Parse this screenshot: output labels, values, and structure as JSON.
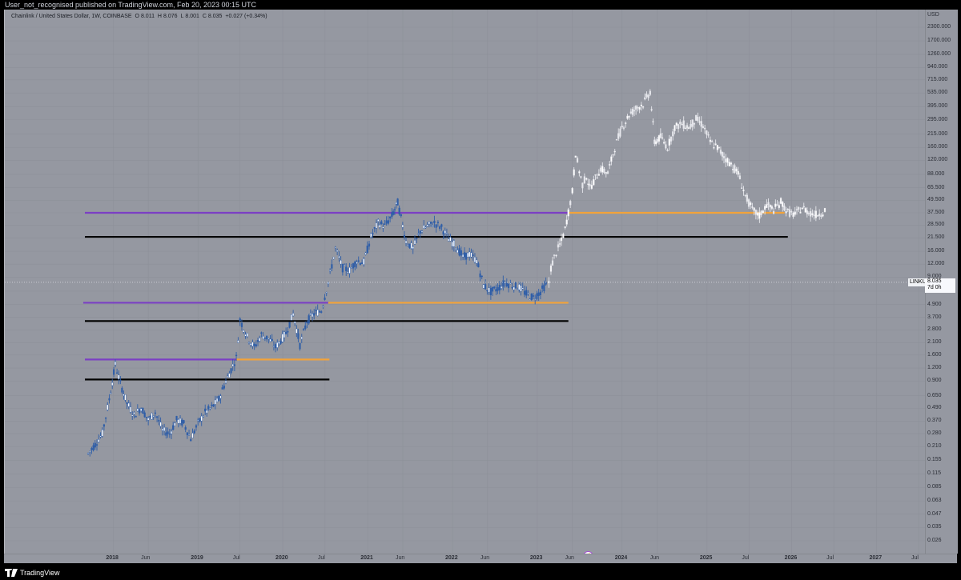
{
  "header": {
    "publish_text": "User_not_recognised published on TradingView.com, Feb 20, 2023 00:15 UTC"
  },
  "legend": {
    "symbol": "Chainlink / United States Dollar, 1W, COINBASE",
    "o_label": "O",
    "o_value": "8.011",
    "h_label": "H",
    "h_value": "8.076",
    "l_label": "L",
    "l_value": "8.001",
    "c_label": "C",
    "c_value": "8.035",
    "change": "+0.027 (+0.34%)"
  },
  "price_axis": {
    "currency": "USD",
    "labels": [
      "2300.000",
      "1700.000",
      "1260.000",
      "940.000",
      "715.000",
      "535.000",
      "395.000",
      "295.000",
      "215.000",
      "160.000",
      "120.000",
      "88.000",
      "65.500",
      "49.500",
      "37.500",
      "28.500",
      "21.500",
      "16.000",
      "12.000",
      "9.000",
      "6.600",
      "4.900",
      "3.700",
      "2.800",
      "2.100",
      "1.600",
      "1.200",
      "0.900",
      "0.650",
      "0.490",
      "0.370",
      "0.280",
      "0.210",
      "0.155",
      "0.115",
      "0.085",
      "0.063",
      "0.047",
      "0.035",
      "0.026"
    ]
  },
  "time_axis": {
    "labels": [
      {
        "text": "2018",
        "year": true
      },
      {
        "text": "Jun",
        "year": false
      },
      {
        "text": "2019",
        "year": true
      },
      {
        "text": "Jul",
        "year": false
      },
      {
        "text": "2020",
        "year": true
      },
      {
        "text": "Jul",
        "year": false
      },
      {
        "text": "2021",
        "year": true
      },
      {
        "text": "Jun",
        "year": false
      },
      {
        "text": "2022",
        "year": true
      },
      {
        "text": "Jun",
        "year": false
      },
      {
        "text": "2023",
        "year": true
      },
      {
        "text": "Jun",
        "year": false
      },
      {
        "text": "2024",
        "year": true
      },
      {
        "text": "Jun",
        "year": false
      },
      {
        "text": "2025",
        "year": true
      },
      {
        "text": "Jul",
        "year": false
      },
      {
        "text": "2026",
        "year": true
      },
      {
        "text": "Jul",
        "year": false
      },
      {
        "text": "2027",
        "year": true
      },
      {
        "text": "Jul",
        "year": false
      }
    ]
  },
  "last_price": {
    "symbol": "LINKUSD",
    "value": "8.035",
    "countdown": "7d 0h"
  },
  "footer": {
    "brand": "TradingView"
  },
  "colors": {
    "background": "#9598a1",
    "candle_real": "#2f5ea8",
    "candle_projection": "#e6e7ec",
    "resistance_line": "#7b3fc4",
    "support_line": "#f2a33a",
    "level_line": "#000000"
  },
  "chart_data": {
    "type": "candlestick",
    "title": "",
    "xlabel": "",
    "ylabel": "",
    "y_scale": "log",
    "ylim": [
      0.026,
      2300
    ],
    "xlim": [
      "2017-09-01",
      "2027-08-01"
    ],
    "grid": true,
    "series": [
      {
        "name": "",
        "kind": "price_history",
        "points": [
          [
            "2017-09-15",
            0.18
          ],
          [
            "2017-10-15",
            0.22
          ],
          [
            "2017-11-15",
            0.28
          ],
          [
            "2017-12-15",
            0.6
          ],
          [
            "2018-01-10",
            1.3
          ],
          [
            "2018-02-01",
            0.85
          ],
          [
            "2018-03-01",
            0.55
          ],
          [
            "2018-04-01",
            0.42
          ],
          [
            "2018-05-01",
            0.5
          ],
          [
            "2018-06-01",
            0.38
          ],
          [
            "2018-07-01",
            0.45
          ],
          [
            "2018-08-01",
            0.3
          ],
          [
            "2018-09-01",
            0.28
          ],
          [
            "2018-10-01",
            0.38
          ],
          [
            "2018-11-01",
            0.35
          ],
          [
            "2018-12-01",
            0.25
          ],
          [
            "2019-01-01",
            0.35
          ],
          [
            "2019-02-01",
            0.45
          ],
          [
            "2019-03-01",
            0.5
          ],
          [
            "2019-04-01",
            0.6
          ],
          [
            "2019-05-01",
            0.9
          ],
          [
            "2019-06-15",
            1.5
          ],
          [
            "2019-07-01",
            3.5
          ],
          [
            "2019-08-01",
            2.4
          ],
          [
            "2019-09-01",
            1.9
          ],
          [
            "2019-10-01",
            2.5
          ],
          [
            "2019-11-01",
            2.3
          ],
          [
            "2019-12-01",
            1.9
          ],
          [
            "2020-01-15",
            2.6
          ],
          [
            "2020-02-15",
            4.0
          ],
          [
            "2020-03-15",
            2.0
          ],
          [
            "2020-04-15",
            3.4
          ],
          [
            "2020-05-15",
            4.0
          ],
          [
            "2020-06-15",
            4.3
          ],
          [
            "2020-07-15",
            8.0
          ],
          [
            "2020-08-15",
            17.0
          ],
          [
            "2020-09-15",
            11.0
          ],
          [
            "2020-10-15",
            10.5
          ],
          [
            "2020-11-15",
            13.0
          ],
          [
            "2020-12-15",
            12.5
          ],
          [
            "2021-01-15",
            22.0
          ],
          [
            "2021-02-15",
            30.0
          ],
          [
            "2021-03-15",
            28.0
          ],
          [
            "2021-04-15",
            35.0
          ],
          [
            "2021-05-10",
            47.0
          ],
          [
            "2021-06-15",
            20.0
          ],
          [
            "2021-07-15",
            17.0
          ],
          [
            "2021-08-15",
            25.0
          ],
          [
            "2021-09-15",
            28.0
          ],
          [
            "2021-10-15",
            30.0
          ],
          [
            "2021-11-15",
            27.0
          ],
          [
            "2021-12-15",
            21.0
          ],
          [
            "2022-01-15",
            18.0
          ],
          [
            "2022-02-15",
            14.0
          ],
          [
            "2022-03-15",
            15.0
          ],
          [
            "2022-04-15",
            13.0
          ],
          [
            "2022-05-15",
            7.5
          ],
          [
            "2022-06-15",
            6.5
          ],
          [
            "2022-07-15",
            7.0
          ],
          [
            "2022-08-15",
            8.0
          ],
          [
            "2022-09-15",
            7.5
          ],
          [
            "2022-10-15",
            7.2
          ],
          [
            "2022-11-15",
            6.2
          ],
          [
            "2022-12-15",
            5.7
          ],
          [
            "2023-01-15",
            6.5
          ],
          [
            "2023-02-15",
            8.035
          ]
        ]
      },
      {
        "name": "",
        "kind": "projection",
        "points": [
          [
            "2023-02-20",
            8.0
          ],
          [
            "2023-03-01",
            11.0
          ],
          [
            "2023-03-15",
            14.0
          ],
          [
            "2023-04-01",
            17.0
          ],
          [
            "2023-04-15",
            20.0
          ],
          [
            "2023-05-01",
            26.0
          ],
          [
            "2023-05-15",
            38.0
          ],
          [
            "2023-06-01",
            60.0
          ],
          [
            "2023-06-15",
            140.0
          ],
          [
            "2023-07-01",
            95.0
          ],
          [
            "2023-07-15",
            70.0
          ],
          [
            "2023-08-01",
            85.0
          ],
          [
            "2023-08-15",
            65.0
          ],
          [
            "2023-09-01",
            75.0
          ],
          [
            "2023-10-01",
            100.0
          ],
          [
            "2023-11-01",
            90.0
          ],
          [
            "2023-12-01",
            160.0
          ],
          [
            "2024-01-01",
            250.0
          ],
          [
            "2024-02-01",
            330.0
          ],
          [
            "2024-03-01",
            380.0
          ],
          [
            "2024-04-01",
            420.0
          ],
          [
            "2024-05-01",
            550.0
          ],
          [
            "2024-05-20",
            180.0
          ],
          [
            "2024-06-15",
            200.0
          ],
          [
            "2024-07-15",
            160.0
          ],
          [
            "2024-08-15",
            250.0
          ],
          [
            "2024-09-15",
            270.0
          ],
          [
            "2024-10-15",
            250.0
          ],
          [
            "2024-11-15",
            300.0
          ],
          [
            "2024-12-15",
            260.0
          ],
          [
            "2025-01-15",
            180.0
          ],
          [
            "2025-02-15",
            160.0
          ],
          [
            "2025-03-15",
            130.0
          ],
          [
            "2025-04-15",
            110.0
          ],
          [
            "2025-05-15",
            90.0
          ],
          [
            "2025-06-15",
            55.0
          ],
          [
            "2025-07-15",
            40.0
          ],
          [
            "2025-08-15",
            35.0
          ],
          [
            "2025-09-15",
            45.0
          ],
          [
            "2025-10-15",
            40.0
          ],
          [
            "2025-11-15",
            48.0
          ],
          [
            "2025-12-15",
            38.0
          ],
          [
            "2026-01-15",
            36.0
          ],
          [
            "2026-02-15",
            42.0
          ],
          [
            "2026-03-15",
            38.0
          ],
          [
            "2026-04-15",
            36.0
          ],
          [
            "2026-05-15",
            38.0
          ],
          [
            "2026-06-01",
            42.0
          ]
        ]
      }
    ],
    "levels": [
      {
        "kind": "resistance",
        "price": 37.5,
        "from": "2017-09-01",
        "to": "2023-05-15"
      },
      {
        "kind": "support",
        "price": 37.5,
        "from": "2023-05-15",
        "to": "2025-12-01"
      },
      {
        "kind": "level",
        "price": 22.0,
        "from": "2017-09-01",
        "to": "2025-12-15"
      },
      {
        "kind": "resistance",
        "price": 5.1,
        "from": "2017-08-25",
        "to": "2020-07-15"
      },
      {
        "kind": "support",
        "price": 5.1,
        "from": "2020-07-15",
        "to": "2023-05-15"
      },
      {
        "kind": "level",
        "price": 3.4,
        "from": "2017-09-01",
        "to": "2023-05-15"
      },
      {
        "kind": "resistance",
        "price": 1.45,
        "from": "2017-09-01",
        "to": "2019-06-15"
      },
      {
        "kind": "support",
        "price": 1.45,
        "from": "2019-06-15",
        "to": "2020-07-20"
      },
      {
        "kind": "level",
        "price": 0.93,
        "from": "2017-09-01",
        "to": "2020-07-20"
      }
    ],
    "crosshair_price": 8.035
  }
}
